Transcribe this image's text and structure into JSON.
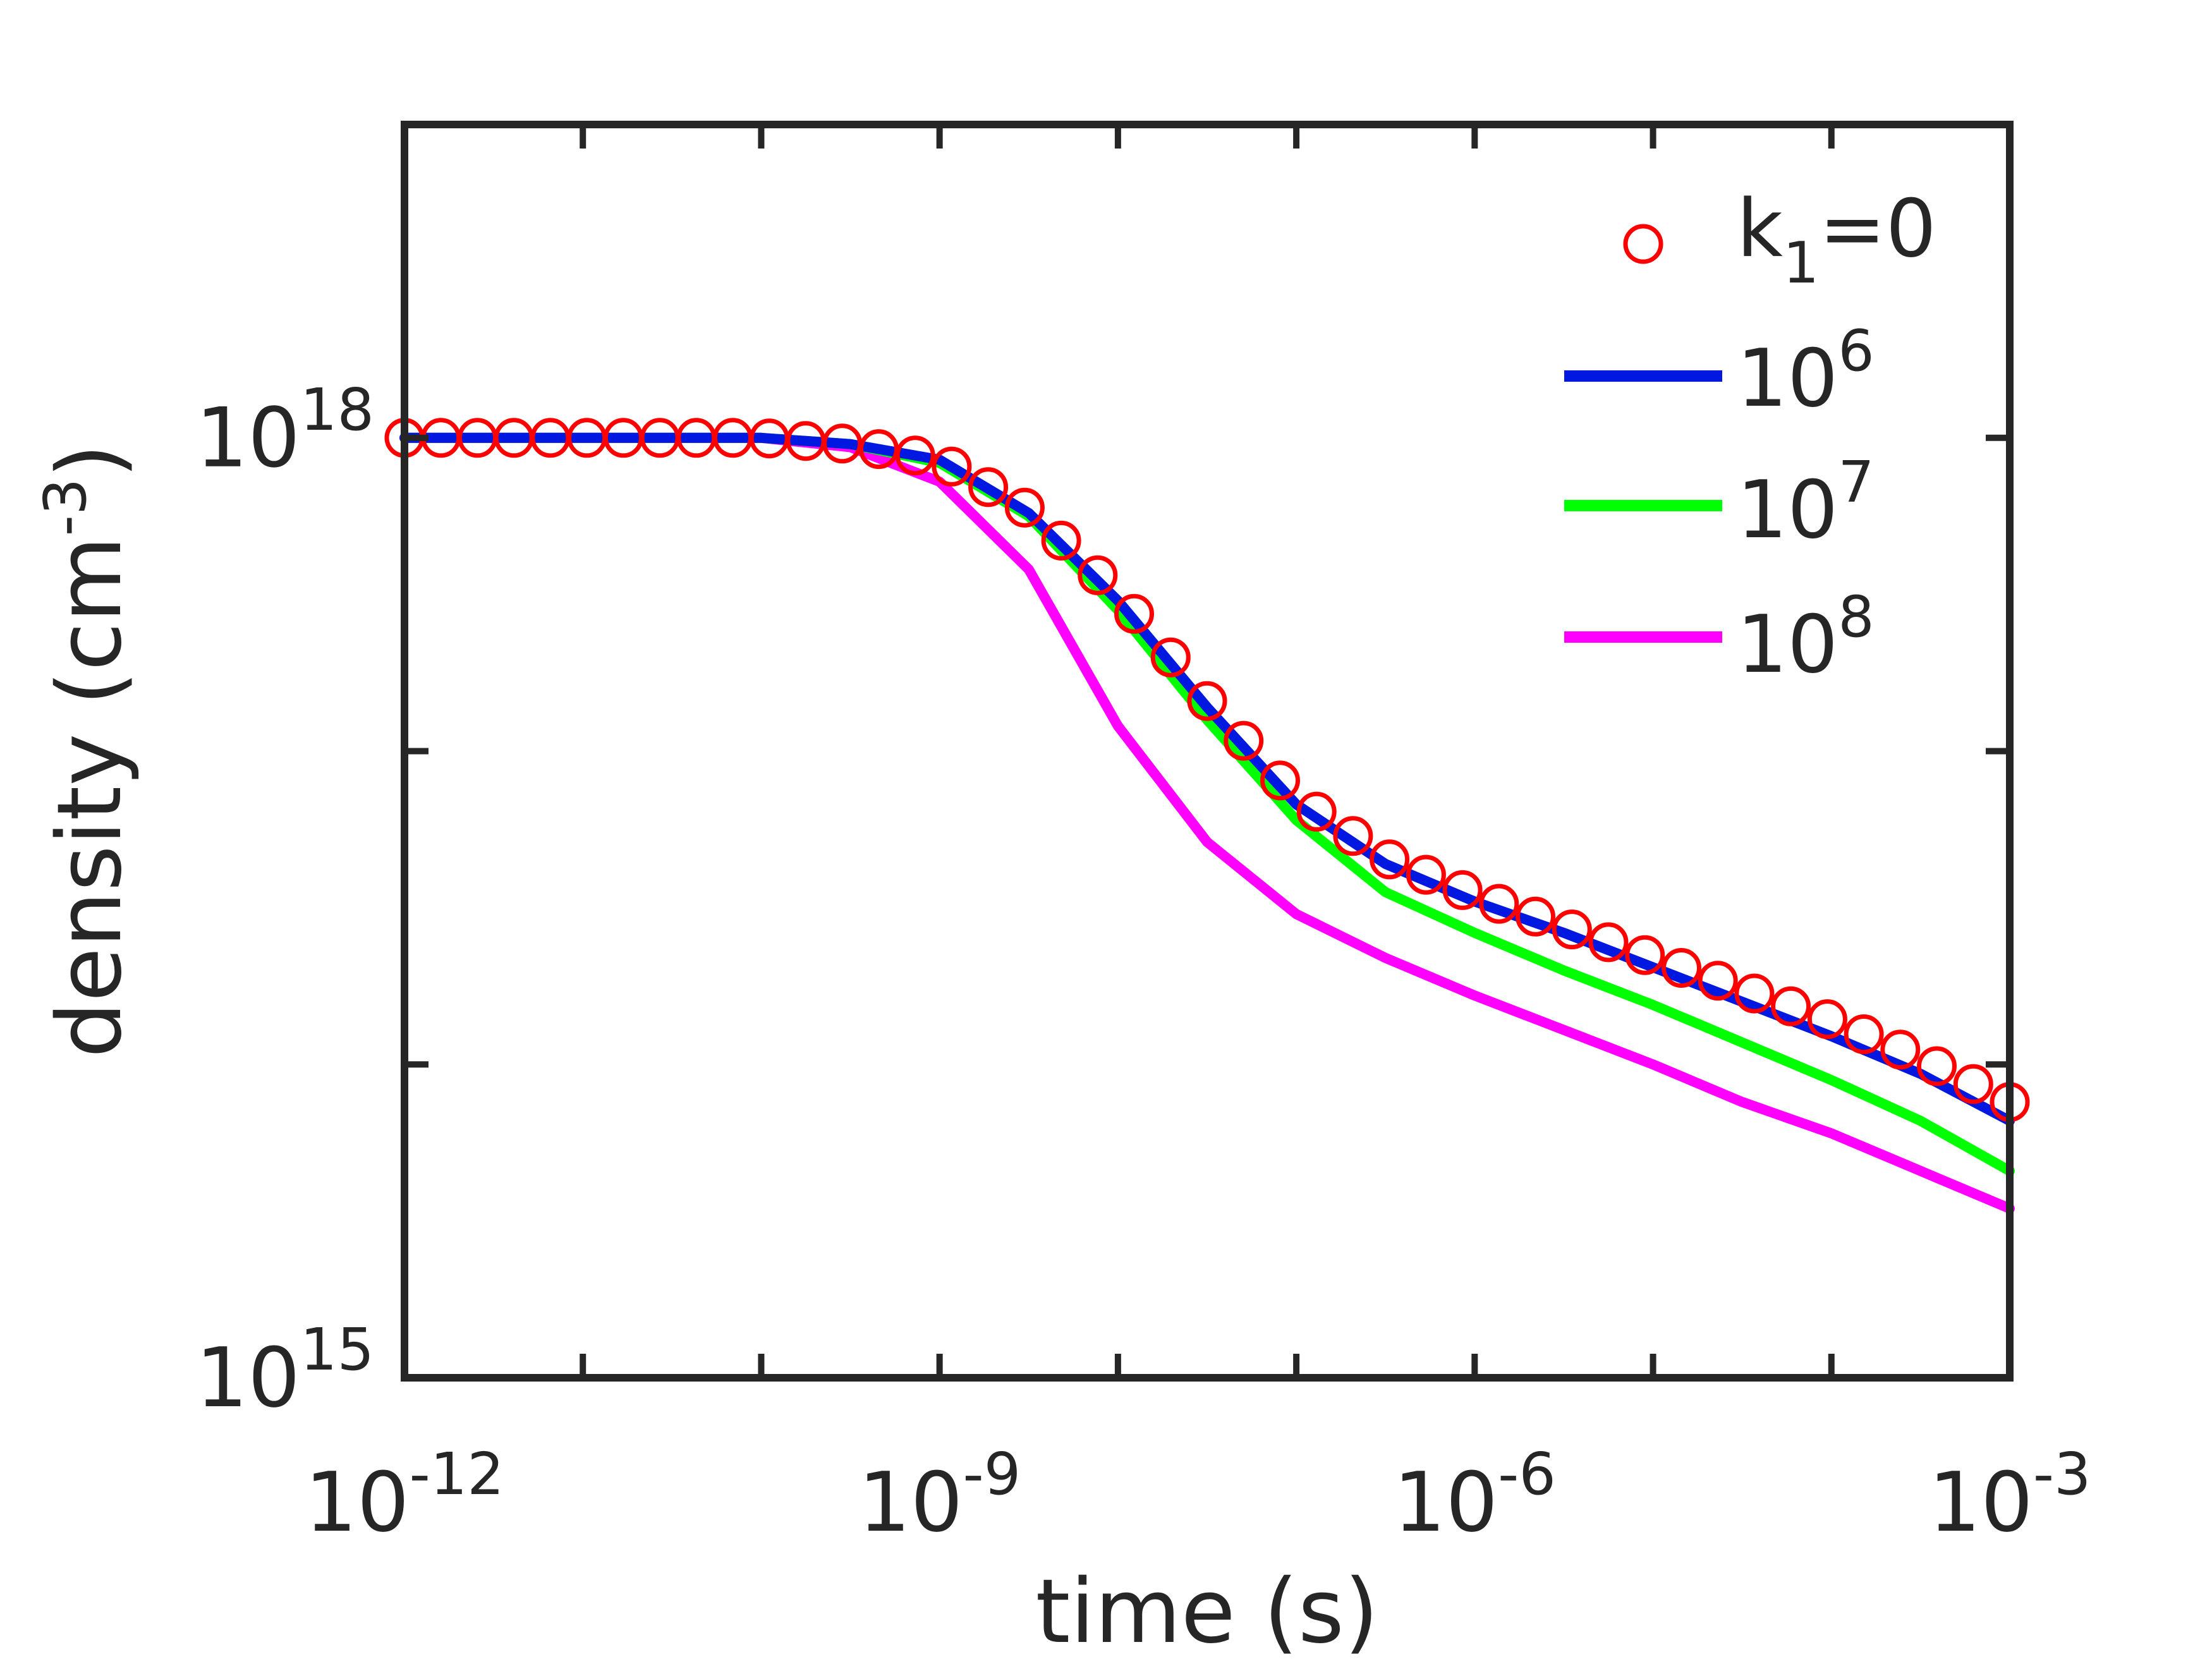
{
  "chart_data": {
    "type": "line",
    "title": "",
    "x_scale": "log",
    "y_scale": "log",
    "xlabel": "time (s)",
    "ylabel": {
      "base": "density (cm",
      "sup": "-3",
      "suffix": ")"
    },
    "xlim_log10": [
      -12,
      -3
    ],
    "ylim_log10": [
      15,
      19
    ],
    "x_ticks": [
      {
        "exp": -12,
        "label_base": "10",
        "label_sup": "-12"
      },
      {
        "exp": -9,
        "label_base": "10",
        "label_sup": "-9"
      },
      {
        "exp": -6,
        "label_base": "10",
        "label_sup": "-6"
      },
      {
        "exp": -3,
        "label_base": "10",
        "label_sup": "-3"
      }
    ],
    "y_ticks": [
      {
        "exp": 15,
        "label_base": "10",
        "label_sup": "15"
      },
      {
        "exp": 18,
        "label_base": "10",
        "label_sup": "18"
      }
    ],
    "legend_position": "top-right",
    "x_log10": [
      -12.0,
      -11.5,
      -11.0,
      -10.5,
      -10.0,
      -9.5,
      -9.0,
      -8.5,
      -8.0,
      -7.5,
      -7.0,
      -6.5,
      -6.0,
      -5.5,
      -5.0,
      -4.5,
      -4.0,
      -3.5,
      -3.0
    ],
    "series": [
      {
        "name": "k1=0",
        "legend_main": "k",
        "legend_sub": "1",
        "legend_suffix": "=0",
        "style": "markers",
        "color": "#ff0000",
        "y_log10": [
          18.0,
          18.0,
          18.0,
          18.0,
          18.0,
          17.98,
          17.93,
          17.77,
          17.5,
          17.16,
          16.85,
          16.66,
          16.54,
          16.44,
          16.34,
          16.24,
          16.14,
          16.02,
          15.88
        ]
      },
      {
        "name": "10^6",
        "legend_main": "10",
        "legend_sup": "6",
        "style": "line",
        "color": "#0018e0",
        "y_log10": [
          18.0,
          18.0,
          18.0,
          18.0,
          18.0,
          17.98,
          17.93,
          17.76,
          17.48,
          17.14,
          16.83,
          16.64,
          16.52,
          16.42,
          16.31,
          16.2,
          16.09,
          15.97,
          15.82
        ]
      },
      {
        "name": "10^7",
        "legend_main": "10",
        "legend_sup": "7",
        "style": "line",
        "color": "#00ff00",
        "y_log10": [
          18.0,
          18.0,
          18.0,
          18.0,
          18.0,
          17.98,
          17.92,
          17.75,
          17.45,
          17.1,
          16.78,
          16.55,
          16.42,
          16.3,
          16.19,
          16.07,
          15.95,
          15.82,
          15.66
        ]
      },
      {
        "name": "10^8",
        "legend_main": "10",
        "legend_sup": "8",
        "style": "line",
        "color": "#ff00ff",
        "y_log10": [
          18.0,
          18.0,
          18.0,
          18.0,
          18.0,
          17.97,
          17.86,
          17.58,
          17.08,
          16.71,
          16.48,
          16.34,
          16.22,
          16.11,
          16.0,
          15.88,
          15.78,
          15.66,
          15.54
        ]
      }
    ]
  }
}
